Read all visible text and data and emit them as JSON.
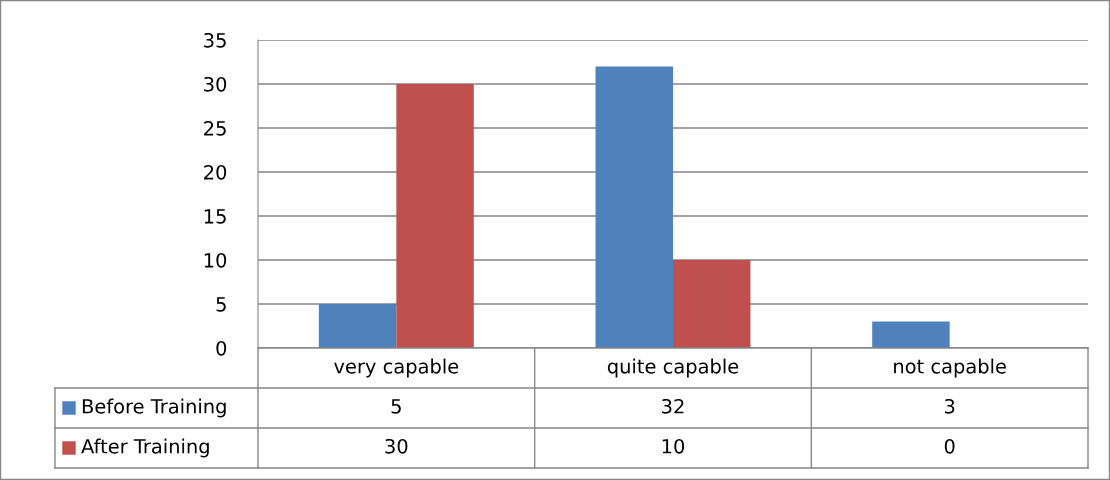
{
  "chart_data": {
    "type": "bar",
    "categories": [
      "very capable",
      "quite capable",
      "not capable"
    ],
    "series": [
      {
        "name": "Before Training",
        "color": "#4f81bd",
        "values": [
          5,
          32,
          3
        ]
      },
      {
        "name": "After Training",
        "color": "#c0504d",
        "values": [
          30,
          10,
          0
        ]
      }
    ],
    "ylim": [
      0,
      35
    ],
    "yticks": [
      0,
      5,
      10,
      15,
      20,
      25,
      30,
      35
    ],
    "grid": "y",
    "legend": "bottom",
    "data_labels": true
  }
}
